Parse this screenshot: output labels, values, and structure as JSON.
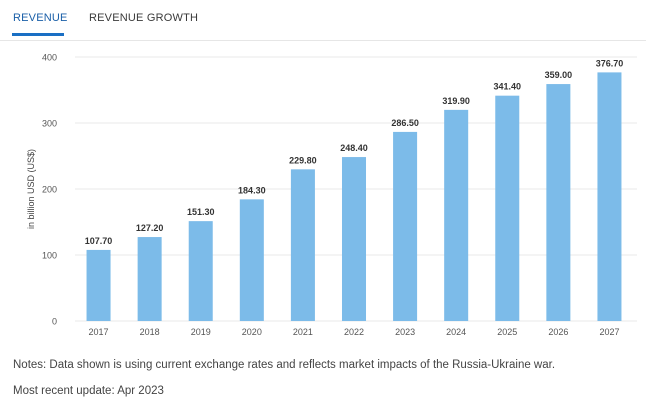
{
  "tabs": [
    {
      "label": "REVENUE",
      "active": true
    },
    {
      "label": "REVENUE GROWTH",
      "active": false
    }
  ],
  "colors": {
    "bar": "#7cbbe9",
    "accent": "#1a6fc4",
    "grid": "#e8e8e8"
  },
  "chart_data": {
    "type": "bar",
    "ylabel": "in billion USD (US$)",
    "categories": [
      "2017",
      "2018",
      "2019",
      "2020",
      "2021",
      "2022",
      "2023",
      "2024",
      "2025",
      "2026",
      "2027"
    ],
    "values": [
      107.7,
      127.2,
      151.3,
      184.3,
      229.8,
      248.4,
      286.5,
      319.9,
      341.4,
      359.0,
      376.7
    ],
    "value_labels": [
      "107.70",
      "127.20",
      "151.30",
      "184.30",
      "229.80",
      "248.40",
      "286.50",
      "319.90",
      "341.40",
      "359.00",
      "376.70"
    ],
    "ylim": [
      0,
      400
    ],
    "yticks": [
      "0",
      "100",
      "200",
      "300",
      "400"
    ],
    "grid": true
  },
  "notes": "Notes: Data shown is using current exchange rates and reflects market impacts of the Russia-Ukraine war.",
  "update": "Most recent update: Apr 2023"
}
